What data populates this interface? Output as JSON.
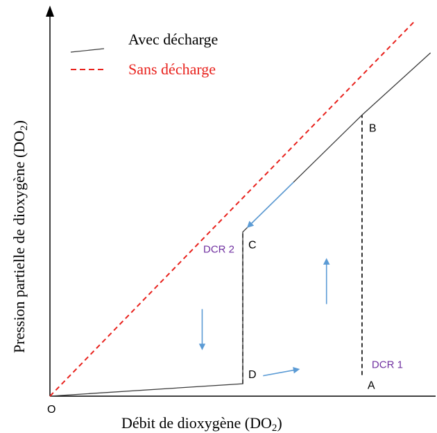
{
  "chart_data": {
    "type": "line",
    "xlabel": "Débit de dioxygène (DO",
    "xlabel_sub": "2",
    "xlabel_end": ")",
    "ylabel": "Pression partielle de dioxygène (DO",
    "ylabel_sub": "2",
    "ylabel_end": ")",
    "origin_label": "O",
    "legend_position": "top-left",
    "grid": false,
    "series": [
      {
        "name": "Avec décharge",
        "style": "solid",
        "color": "#3a3a3a",
        "points": [
          {
            "x": 0,
            "y": 0
          },
          {
            "x": 7.6,
            "y": 0.5
          },
          {
            "x": 7.6,
            "y": 6.6
          },
          {
            "x": 12.3,
            "y": 11.3
          },
          {
            "x": 15,
            "y": 13.8
          }
        ]
      },
      {
        "name": "Sans décharge",
        "style": "dashed",
        "color": "#e8211c",
        "points": [
          {
            "x": 0,
            "y": 0
          },
          {
            "x": 14.4,
            "y": 15.1
          }
        ]
      }
    ],
    "verticals": [
      {
        "x": 7.6,
        "y1": 0.5,
        "y2": 6.6
      },
      {
        "x": 12.3,
        "y1": 0.85,
        "y2": 11.3
      }
    ],
    "points": [
      {
        "label": "A",
        "x": 12.3,
        "y": 0.85
      },
      {
        "label": "B",
        "x": 12.3,
        "y": 11.3
      },
      {
        "label": "C",
        "x": 7.6,
        "y": 6.6
      },
      {
        "label": "D",
        "x": 7.6,
        "y": 0.5
      }
    ],
    "annotations": [
      {
        "text": "DCR 1",
        "color": "#7030a0",
        "x": 12.3,
        "y": 0.85
      },
      {
        "text": "DCR 2",
        "color": "#7030a0",
        "x": 7.6,
        "y": 6.6
      }
    ],
    "arrows": [
      {
        "from": {
          "x": 8.4,
          "y": 0.82
        },
        "to": {
          "x": 9.8,
          "y": 1.08
        },
        "color": "#5b9bd5"
      },
      {
        "from": {
          "x": 10.9,
          "y": 3.7
        },
        "to": {
          "x": 10.9,
          "y": 5.5
        },
        "color": "#5b9bd5"
      },
      {
        "from": {
          "x": 9.6,
          "y": 8.6
        },
        "to": {
          "x": 7.8,
          "y": 6.8
        },
        "color": "#5b9bd5"
      },
      {
        "from": {
          "x": 6.0,
          "y": 3.5
        },
        "to": {
          "x": 6.0,
          "y": 1.9
        },
        "color": "#5b9bd5"
      }
    ],
    "xlim": [
      0,
      15.2
    ],
    "ylim": [
      0,
      15.7
    ]
  }
}
